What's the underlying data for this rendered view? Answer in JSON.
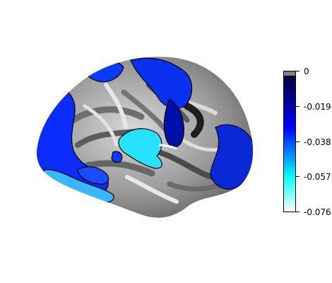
{
  "colorbar": {
    "ticks": [
      "0",
      "-0.019",
      "-0.038",
      "-0.057",
      "-0.076"
    ],
    "colors": [
      "#000033",
      "#0000ff",
      "#00ffff",
      "#ffffff"
    ],
    "zero_band_color": "#808080"
  },
  "figure": {
    "colors": {
      "cortex_light": "#cfcfcf",
      "cortex_dark": "#3a3a3a",
      "activation_deep": "#0010a8",
      "activation_mid": "#0a3cff",
      "activation_cyan": "#28e6ff"
    }
  }
}
